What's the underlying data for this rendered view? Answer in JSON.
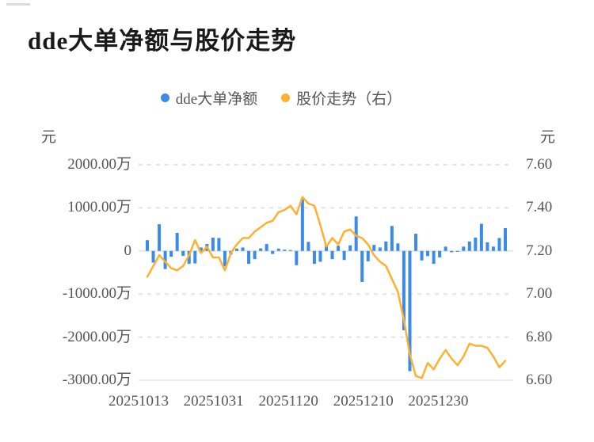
{
  "title": "dde大单净额与股价走势",
  "legend": {
    "items": [
      {
        "label": "dde大单净额",
        "color": "#3a8ce8"
      },
      {
        "label": "股价走势（右）",
        "color": "#ffb02e"
      }
    ]
  },
  "chart_data": {
    "type": "combo-bar-line",
    "title": "dde大单净额与股价走势",
    "grid": "horizontal-dashed",
    "legend_position": "top-center",
    "left_axis": {
      "unit": "元",
      "ticks": [
        "2000.00万",
        "1000.00万",
        "0",
        "-1000.00万",
        "-2000.00万",
        "-3000.00万"
      ],
      "min_wan": -3000,
      "max_wan": 2000
    },
    "right_axis": {
      "unit": "元",
      "ticks": [
        "7.60",
        "7.40",
        "7.20",
        "7.00",
        "6.80",
        "6.60"
      ],
      "min": 6.6,
      "max": 7.6
    },
    "x_axis": {
      "tick_labels": [
        "20251013",
        "20251031",
        "20251120",
        "20251210",
        "20251230"
      ],
      "tick_indices": [
        0,
        12,
        24,
        36,
        48
      ],
      "point_count": 61
    },
    "series": [
      {
        "name": "dde大单净额",
        "type": "bar",
        "axis": "left",
        "unit": "万",
        "color": "#3a8ce8",
        "values_wan": [
          250,
          -270,
          620,
          -420,
          -135,
          420,
          -115,
          -300,
          -290,
          80,
          160,
          310,
          300,
          -360,
          -85,
          55,
          80,
          -300,
          -190,
          60,
          160,
          -70,
          55,
          30,
          20,
          -330,
          1230,
          210,
          -300,
          -250,
          140,
          -190,
          120,
          -210,
          130,
          800,
          -720,
          -240,
          140,
          80,
          220,
          580,
          175,
          -1840,
          -2790,
          400,
          -220,
          -120,
          -300,
          -150,
          100,
          -30,
          -20,
          100,
          220,
          310,
          630,
          200,
          100,
          300,
          530
        ]
      },
      {
        "name": "股价走势（右）",
        "type": "line",
        "axis": "right",
        "unit": "元",
        "color": "#ffb02e",
        "values": [
          7.08,
          7.13,
          7.18,
          7.15,
          7.12,
          7.11,
          7.13,
          7.18,
          7.25,
          7.19,
          7.22,
          7.17,
          7.17,
          7.11,
          7.19,
          7.23,
          7.26,
          7.26,
          7.29,
          7.31,
          7.33,
          7.34,
          7.38,
          7.39,
          7.41,
          7.37,
          7.45,
          7.42,
          7.41,
          7.32,
          7.22,
          7.26,
          7.23,
          7.29,
          7.3,
          7.27,
          7.26,
          7.23,
          7.18,
          7.15,
          7.13,
          7.07,
          7.01,
          6.88,
          6.72,
          6.62,
          6.61,
          6.68,
          6.65,
          6.7,
          6.74,
          6.7,
          6.67,
          6.71,
          6.77,
          6.76,
          6.76,
          6.75,
          6.71,
          6.66,
          6.69
        ]
      }
    ]
  }
}
